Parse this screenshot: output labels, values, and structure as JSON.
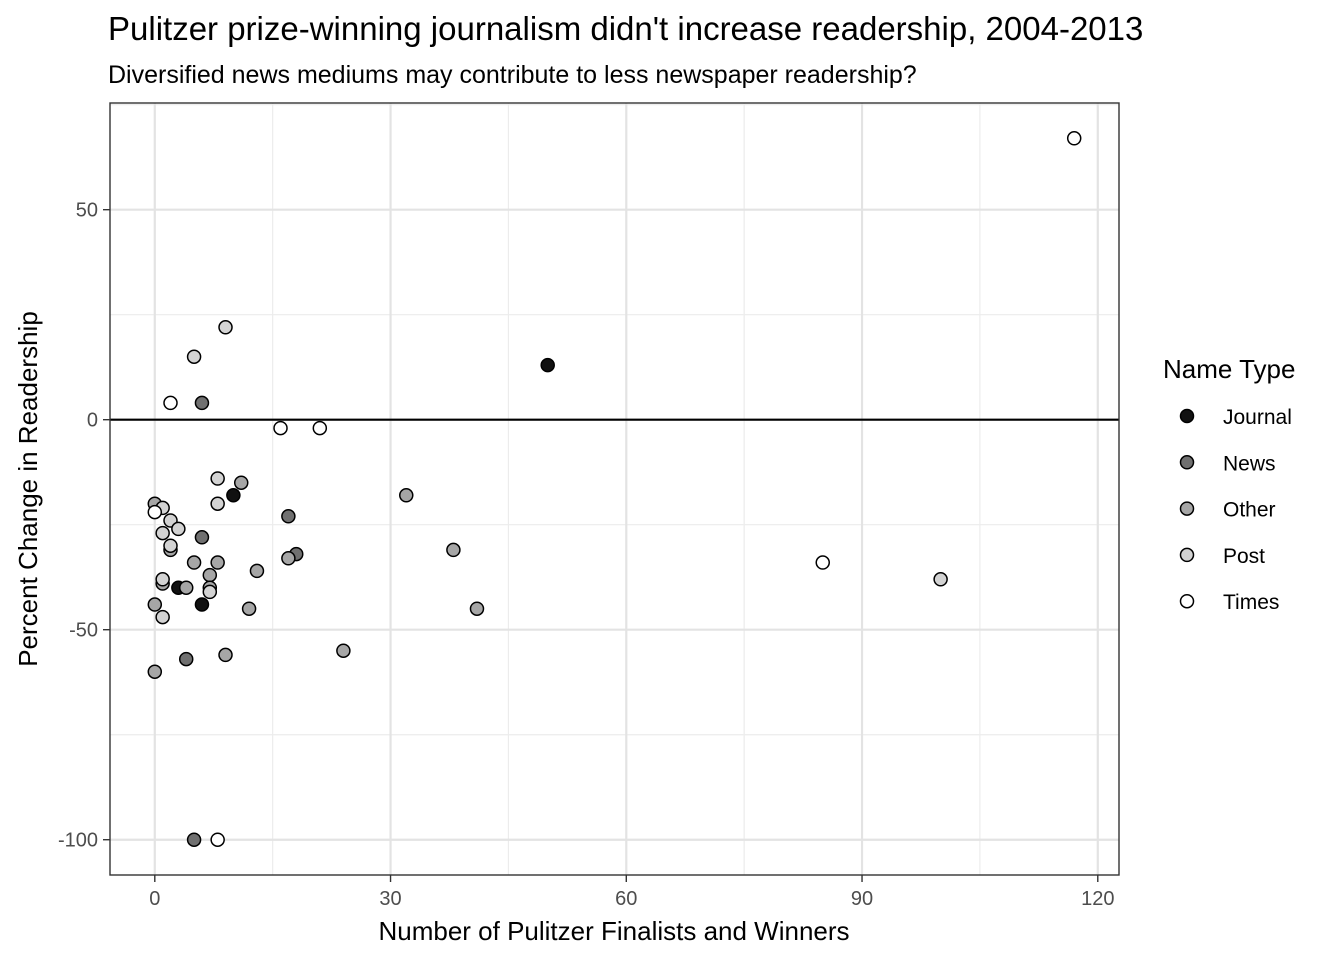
{
  "chart_data": {
    "type": "scatter",
    "title": "Pulitzer prize-winning journalism didn't increase readership, 2004-2013",
    "subtitle": "Diversified news mediums may contribute to less newspaper readership?",
    "xlabel": "Number of Pulitzer Finalists and Winners",
    "ylabel": "Percent Change in Readership",
    "xlim": [
      -5.7,
      122.7
    ],
    "ylim": [
      -108.4,
      75.4
    ],
    "x_ticks": [
      0,
      30,
      60,
      90,
      120
    ],
    "x_tick_labels": [
      "0",
      "30",
      "60",
      "90",
      "120"
    ],
    "y_ticks": [
      -100,
      -50,
      0,
      50
    ],
    "y_tick_labels": [
      "-100",
      "-50",
      "0",
      "50"
    ],
    "hline": 0,
    "grid": true,
    "legend": {
      "title": "Name Type",
      "placement": "right",
      "entries": [
        {
          "name": "Journal",
          "color": "#111111"
        },
        {
          "name": "News",
          "color": "#707070"
        },
        {
          "name": "Other",
          "color": "#a6a6a6"
        },
        {
          "name": "Post",
          "color": "#d3d3d3"
        },
        {
          "name": "Times",
          "color": "#ffffff"
        }
      ]
    },
    "series": [
      {
        "name": "Journal",
        "color": "#111111",
        "points": [
          [
            50,
            13
          ],
          [
            10,
            -18
          ],
          [
            3,
            -40
          ],
          [
            6,
            -44
          ]
        ]
      },
      {
        "name": "News",
        "color": "#707070",
        "points": [
          [
            6,
            4
          ],
          [
            6,
            -28
          ],
          [
            17,
            -23
          ],
          [
            18,
            -32
          ],
          [
            4,
            -57
          ],
          [
            5,
            -100
          ]
        ]
      },
      {
        "name": "Other",
        "color": "#a6a6a6",
        "points": [
          [
            0,
            -20
          ],
          [
            2,
            -31
          ],
          [
            11,
            -15
          ],
          [
            32,
            -18
          ],
          [
            38,
            -31
          ],
          [
            41,
            -45
          ],
          [
            24,
            -55
          ],
          [
            9,
            -56
          ],
          [
            0,
            -60
          ],
          [
            0,
            -44
          ],
          [
            5,
            -34
          ],
          [
            8,
            -34
          ],
          [
            7,
            -37
          ],
          [
            7,
            -40
          ],
          [
            13,
            -36
          ],
          [
            12,
            -45
          ],
          [
            17,
            -33
          ],
          [
            1,
            -39
          ],
          [
            4,
            -40
          ]
        ]
      },
      {
        "name": "Post",
        "color": "#d3d3d3",
        "points": [
          [
            9,
            22
          ],
          [
            5,
            15
          ],
          [
            8,
            -14
          ],
          [
            8,
            -20
          ],
          [
            1,
            -21
          ],
          [
            2,
            -24
          ],
          [
            1,
            -27
          ],
          [
            3,
            -26
          ],
          [
            2,
            -30
          ],
          [
            1,
            -38
          ],
          [
            1,
            -47
          ],
          [
            7,
            -41
          ],
          [
            100,
            -38
          ]
        ]
      },
      {
        "name": "Times",
        "color": "#ffffff",
        "points": [
          [
            117,
            67
          ],
          [
            2,
            4
          ],
          [
            16,
            -2
          ],
          [
            21,
            -2
          ],
          [
            0,
            -22
          ],
          [
            85,
            -34
          ],
          [
            8,
            -100
          ]
        ]
      }
    ]
  }
}
